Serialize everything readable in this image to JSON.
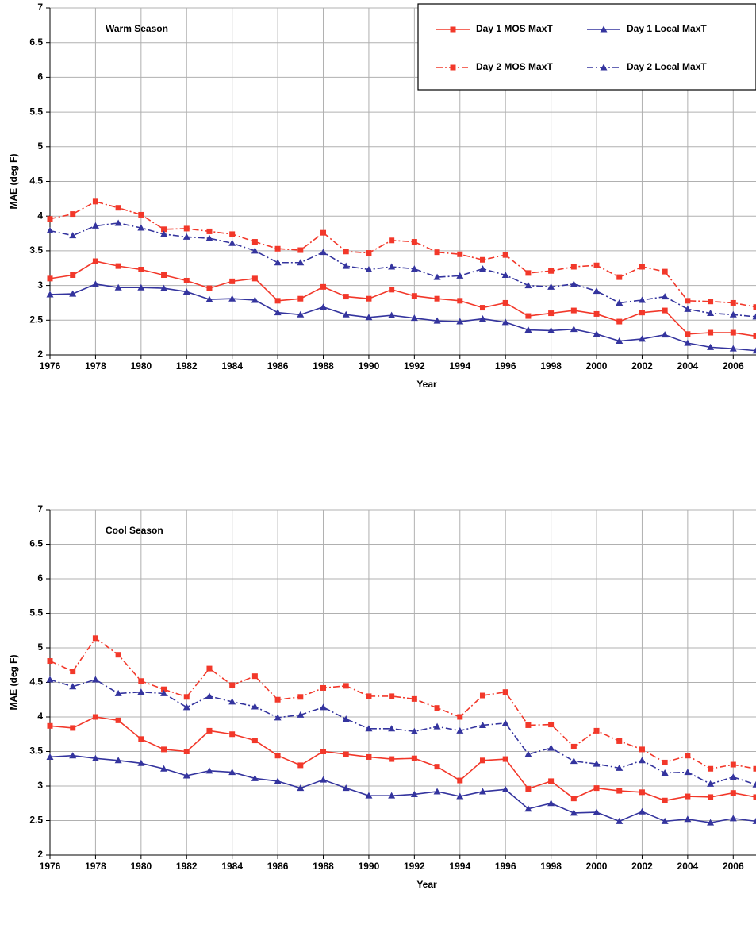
{
  "chart_data": [
    {
      "type": "line",
      "title": "Warm Season",
      "xlabel": "Year",
      "ylabel": "MAE (deg F)",
      "x": [
        1976,
        1977,
        1978,
        1979,
        1980,
        1981,
        1982,
        1983,
        1984,
        1985,
        1986,
        1987,
        1988,
        1989,
        1990,
        1991,
        1992,
        1993,
        1994,
        1995,
        1996,
        1997,
        1998,
        1999,
        2000,
        2001,
        2002,
        2003,
        2004,
        2005,
        2006,
        2007
      ],
      "xlim": [
        1976,
        2007
      ],
      "xticks": [
        1976,
        1978,
        1980,
        1982,
        1984,
        1986,
        1988,
        1990,
        1992,
        1994,
        1996,
        1998,
        2000,
        2002,
        2004,
        2006
      ],
      "ylim": [
        2,
        7
      ],
      "yticks": [
        2,
        2.5,
        3,
        3.5,
        4,
        4.5,
        5,
        5.5,
        6,
        6.5,
        7
      ],
      "grid": true,
      "legend": "upper right",
      "series": [
        {
          "name": "Day 1 MOS MaxT",
          "color": "#f2382a",
          "marker": "square",
          "linestyle": "solid",
          "values": [
            3.1,
            3.15,
            3.35,
            3.28,
            3.23,
            3.15,
            3.07,
            2.96,
            3.06,
            3.1,
            2.78,
            2.81,
            2.98,
            2.84,
            2.81,
            2.94,
            2.85,
            2.81,
            2.78,
            2.68,
            2.75,
            2.56,
            2.6,
            2.64,
            2.59,
            2.48,
            2.61,
            2.64,
            2.3,
            2.32,
            2.32,
            2.27
          ]
        },
        {
          "name": "Day 1 Local MaxT",
          "color": "#34349e",
          "marker": "triangle",
          "linestyle": "solid",
          "values": [
            2.87,
            2.88,
            3.02,
            2.97,
            2.97,
            2.96,
            2.91,
            2.8,
            2.81,
            2.79,
            2.61,
            2.58,
            2.69,
            2.58,
            2.54,
            2.57,
            2.53,
            2.49,
            2.48,
            2.52,
            2.47,
            2.36,
            2.35,
            2.37,
            2.3,
            2.2,
            2.23,
            2.29,
            2.17,
            2.11,
            2.09,
            2.06
          ]
        },
        {
          "name": "Day 2 MOS MaxT",
          "color": "#f2382a",
          "marker": "square",
          "linestyle": "dashdot",
          "values": [
            3.96,
            4.03,
            4.21,
            4.12,
            4.02,
            3.81,
            3.82,
            3.78,
            3.74,
            3.63,
            3.53,
            3.51,
            3.76,
            3.49,
            3.47,
            3.65,
            3.63,
            3.48,
            3.45,
            3.37,
            3.44,
            3.18,
            3.21,
            3.27,
            3.29,
            3.12,
            3.27,
            3.2,
            2.78,
            2.77,
            2.75,
            2.69
          ]
        },
        {
          "name": "Day 2 Local MaxT",
          "color": "#34349e",
          "marker": "triangle",
          "linestyle": "dashdot",
          "values": [
            3.79,
            3.72,
            3.86,
            3.9,
            3.83,
            3.74,
            3.7,
            3.68,
            3.61,
            3.5,
            3.33,
            3.33,
            3.48,
            3.28,
            3.23,
            3.27,
            3.24,
            3.12,
            3.14,
            3.24,
            3.15,
            3.0,
            2.98,
            3.02,
            2.92,
            2.75,
            2.79,
            2.84,
            2.66,
            2.6,
            2.58,
            2.55
          ]
        }
      ]
    },
    {
      "type": "line",
      "title": "Cool Season",
      "xlabel": "Year",
      "ylabel": "MAE (deg F)",
      "x": [
        1976,
        1977,
        1978,
        1979,
        1980,
        1981,
        1982,
        1983,
        1984,
        1985,
        1986,
        1987,
        1988,
        1989,
        1990,
        1991,
        1992,
        1993,
        1994,
        1995,
        1996,
        1997,
        1998,
        1999,
        2000,
        2001,
        2002,
        2003,
        2004,
        2005,
        2006,
        2007
      ],
      "xlim": [
        1976,
        2007
      ],
      "xticks": [
        1976,
        1978,
        1980,
        1982,
        1984,
        1986,
        1988,
        1990,
        1992,
        1994,
        1996,
        1998,
        2000,
        2002,
        2004,
        2006
      ],
      "ylim": [
        2,
        7
      ],
      "yticks": [
        2,
        2.5,
        3,
        3.5,
        4,
        4.5,
        5,
        5.5,
        6,
        6.5,
        7
      ],
      "grid": true,
      "series": [
        {
          "color": "#f2382a",
          "marker": "square",
          "linestyle": "solid",
          "values": [
            3.87,
            3.84,
            4.0,
            3.95,
            3.68,
            3.53,
            3.5,
            3.8,
            3.75,
            3.66,
            3.44,
            3.3,
            3.5,
            3.46,
            3.42,
            3.39,
            3.4,
            3.28,
            3.08,
            3.37,
            3.39,
            2.96,
            3.07,
            2.82,
            2.97,
            2.93,
            2.91,
            2.79,
            2.85,
            2.84,
            2.9,
            2.84
          ]
        },
        {
          "color": "#34349e",
          "marker": "triangle",
          "linestyle": "solid",
          "values": [
            3.42,
            3.44,
            3.4,
            3.37,
            3.33,
            3.25,
            3.15,
            3.22,
            3.2,
            3.11,
            3.07,
            2.97,
            3.09,
            2.97,
            2.86,
            2.86,
            2.88,
            2.92,
            2.85,
            2.92,
            2.95,
            2.67,
            2.75,
            2.61,
            2.62,
            2.49,
            2.63,
            2.49,
            2.52,
            2.47,
            2.53,
            2.49
          ]
        },
        {
          "color": "#f2382a",
          "marker": "square",
          "linestyle": "dashdot",
          "values": [
            4.81,
            4.66,
            5.14,
            4.9,
            4.52,
            4.4,
            4.29,
            4.7,
            4.46,
            4.59,
            4.25,
            4.29,
            4.42,
            4.45,
            4.3,
            4.3,
            4.26,
            4.13,
            4.0,
            4.31,
            4.36,
            3.88,
            3.89,
            3.57,
            3.8,
            3.65,
            3.53,
            3.34,
            3.44,
            3.25,
            3.31,
            3.25
          ]
        },
        {
          "color": "#34349e",
          "marker": "triangle",
          "linestyle": "dashdot",
          "values": [
            4.54,
            4.44,
            4.54,
            4.34,
            4.36,
            4.34,
            4.14,
            4.3,
            4.22,
            4.15,
            3.99,
            4.03,
            4.14,
            3.97,
            3.83,
            3.83,
            3.79,
            3.86,
            3.8,
            3.88,
            3.91,
            3.46,
            3.55,
            3.36,
            3.32,
            3.26,
            3.37,
            3.19,
            3.2,
            3.03,
            3.13,
            3.02
          ]
        }
      ]
    }
  ]
}
